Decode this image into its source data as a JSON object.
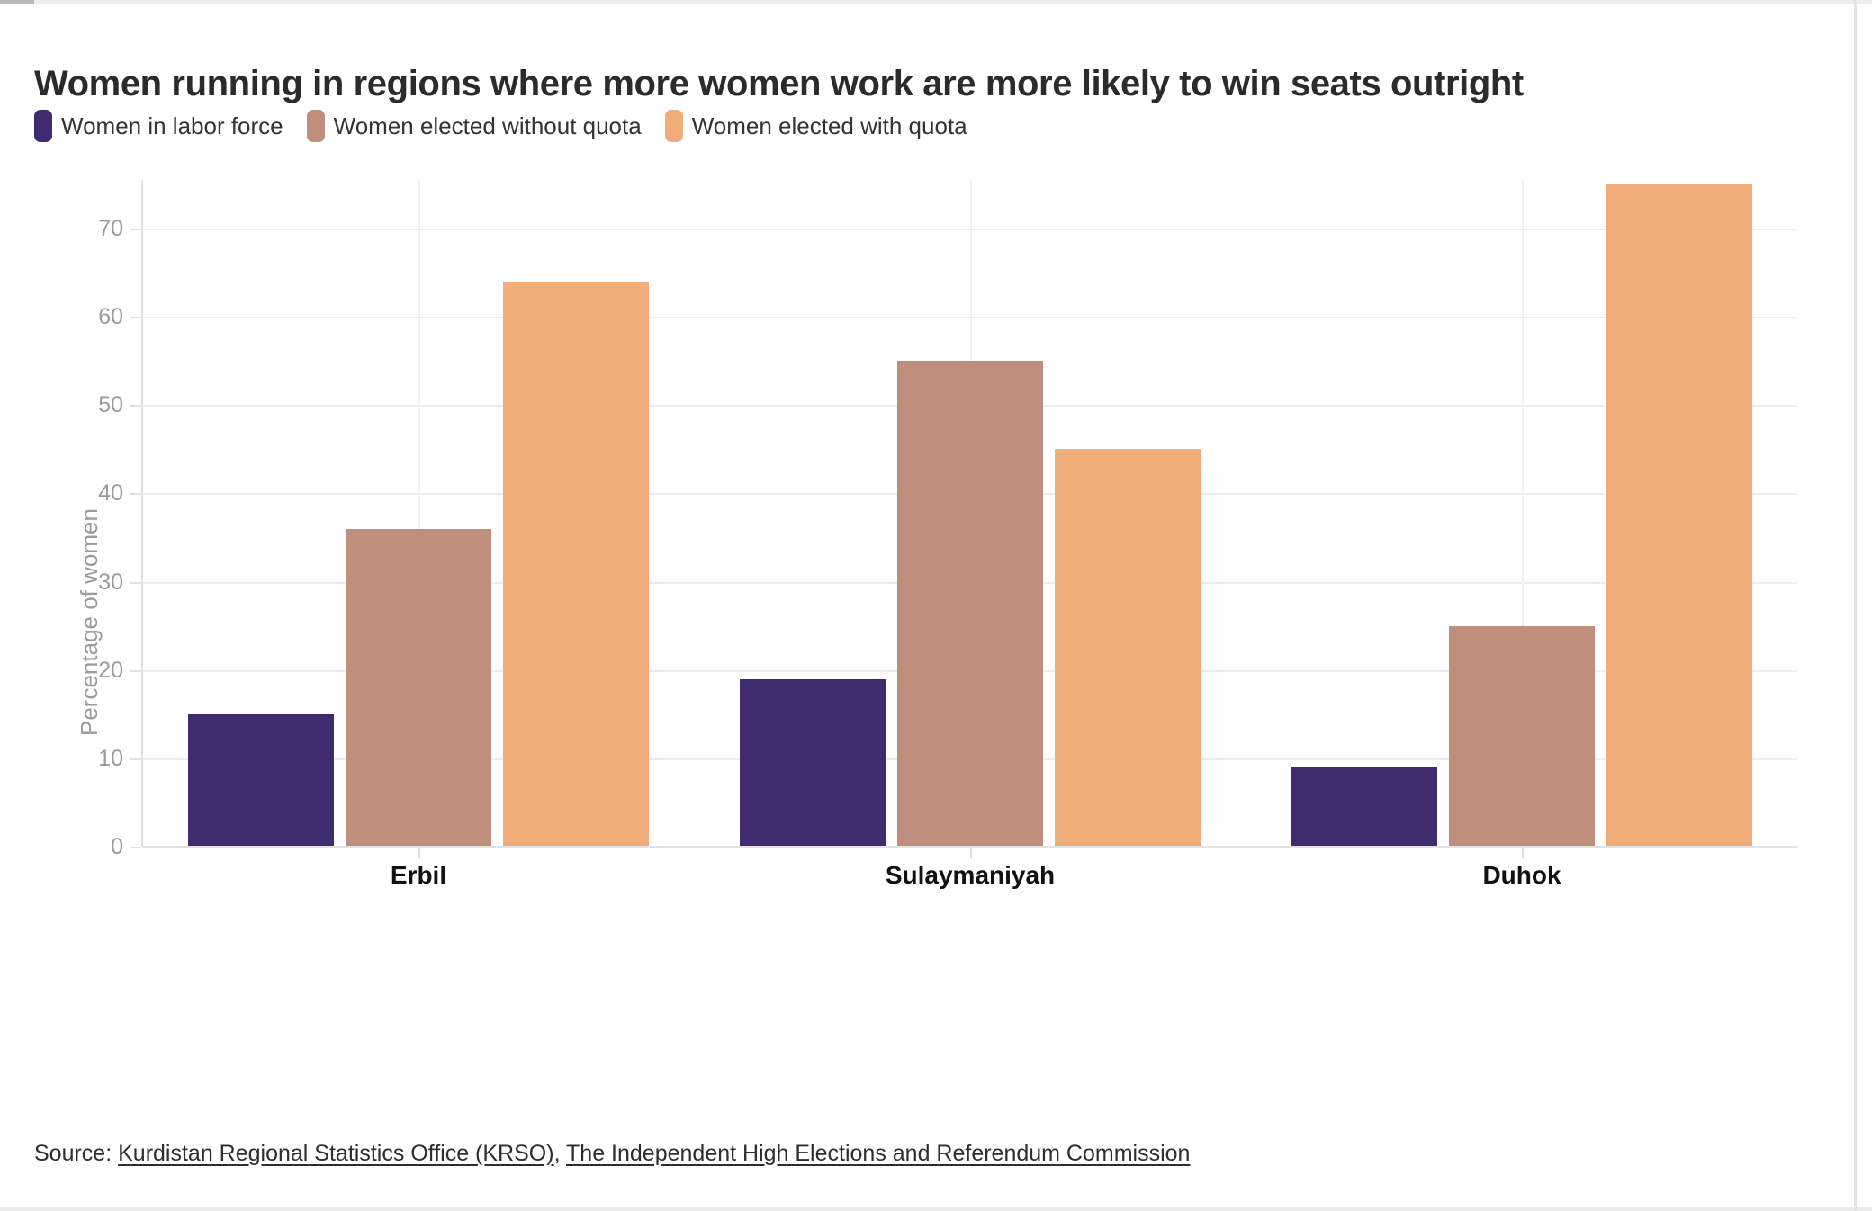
{
  "header": {
    "title": "Women running in regions where more women work are more likely to win seats outright"
  },
  "chart_data": {
    "type": "bar",
    "title": "Women running in regions where more women work are more likely to win seats outright",
    "categories": [
      "Erbil",
      "Sulaymaniyah",
      "Duhok"
    ],
    "series": [
      {
        "name": "Women in labor force",
        "color": "#3f2b6e",
        "values": [
          15,
          19,
          9
        ]
      },
      {
        "name": "Women elected without quota",
        "color": "#c08e7d",
        "values": [
          36,
          55,
          25
        ]
      },
      {
        "name": "Women elected with quota",
        "color": "#f1ad79",
        "values": [
          64,
          45,
          75
        ]
      }
    ],
    "xlabel": "",
    "ylabel": "Percentage of women",
    "yticks": [
      0,
      10,
      20,
      30,
      40,
      50,
      60,
      70
    ],
    "ylim": [
      0,
      75.5
    ],
    "grid": true,
    "legend_position": "top",
    "background": "#ffffff"
  },
  "source": {
    "prefix": "Source: ",
    "link1": "Kurdistan Regional Statistics Office (KRSO)",
    "separator": ", ",
    "link2": "The Independent High Elections and Referendum Commission"
  }
}
